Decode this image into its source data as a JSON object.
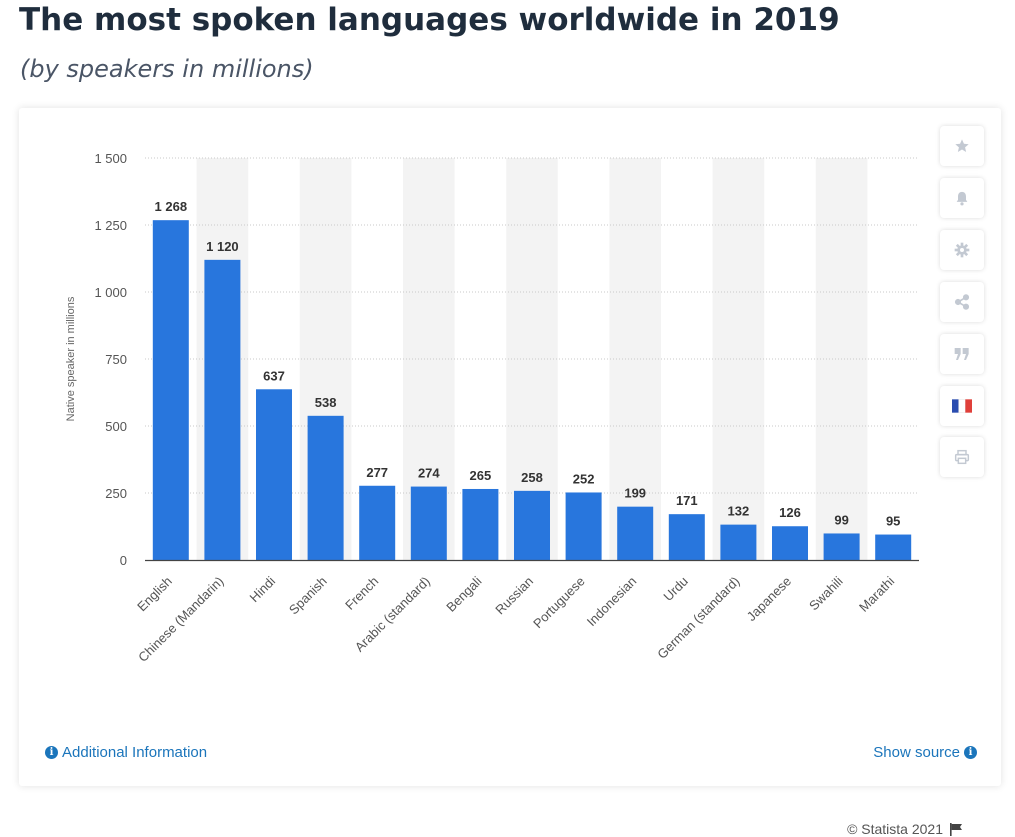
{
  "header": {
    "title": "The most spoken languages worldwide in 2019",
    "subtitle": "(by speakers in millions)"
  },
  "toolbar": {
    "buttons": [
      {
        "icon": "star-icon"
      },
      {
        "icon": "bell-icon"
      },
      {
        "icon": "gear-icon"
      },
      {
        "icon": "share-icon"
      },
      {
        "icon": "quote-icon"
      },
      {
        "icon": "french-flag-icon"
      },
      {
        "icon": "print-icon"
      }
    ]
  },
  "footer": {
    "copyright": "© Statista 2021",
    "additional_info": "Additional Information",
    "show_source": "Show source"
  },
  "colors": {
    "bar": "#2876dd",
    "band": "#f3f3f3",
    "title": "#1f2d3d",
    "link": "#1b75bb"
  },
  "chart_data": {
    "type": "bar",
    "title": "",
    "xlabel": "",
    "ylabel": "Native speaker in millions",
    "ylim": [
      0,
      1500
    ],
    "yticks": [
      0,
      250,
      500,
      750,
      1000,
      1250,
      1500
    ],
    "ytick_labels": [
      "0",
      "250",
      "500",
      "750",
      "1 000",
      "1 250",
      "1 500"
    ],
    "grid": true,
    "categories": [
      "English",
      "Chinese (Mandarin)",
      "Hindi",
      "Spanish",
      "French",
      "Arabic (standard)",
      "Bengali",
      "Russian",
      "Portuguese",
      "Indonesian",
      "Urdu",
      "German (standard)",
      "Japanese",
      "Swahili",
      "Marathi"
    ],
    "values": [
      1268,
      1120,
      637,
      538,
      277,
      274,
      265,
      258,
      252,
      199,
      171,
      132,
      126,
      99,
      95
    ],
    "value_labels": [
      "1 268",
      "1 120",
      "637",
      "538",
      "277",
      "274",
      "265",
      "258",
      "252",
      "199",
      "171",
      "132",
      "126",
      "99",
      "95"
    ]
  }
}
